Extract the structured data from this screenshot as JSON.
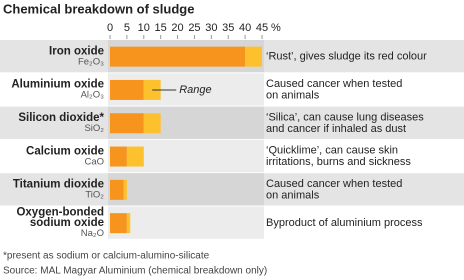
{
  "chart_data": {
    "type": "bar",
    "orientation": "horizontal",
    "stacked": true,
    "title": "Chemical breakdown of sludge",
    "categories": [
      [
        "Iron oxide"
      ],
      [
        "Aluminium oxide"
      ],
      [
        "Silicon dioxide*"
      ],
      [
        "Calcium oxide"
      ],
      [
        "Titanium dioxide"
      ],
      [
        "Oxygen-bonded",
        "sodium oxide"
      ]
    ],
    "formulas": [
      "Fe₂O₃",
      "Al₂O₃",
      "SiO₂",
      "CaO",
      "TiO₂",
      "Na₂O"
    ],
    "series": [
      {
        "name": null,
        "color": "#f7941d",
        "values": [
          40,
          10,
          10,
          5,
          4,
          5
        ]
      },
      {
        "name": "Range",
        "color": "#fdc12e",
        "values": [
          5,
          5,
          5,
          5,
          1,
          1
        ]
      }
    ],
    "descriptions": [
      [
        "‘Rust’, gives sludge its red colour"
      ],
      [
        "Caused cancer when tested",
        "on animals"
      ],
      [
        "‘Silica’, can cause lung diseases",
        "and cancer if inhaled as dust"
      ],
      [
        "‘Quicklime’, can cause skin",
        "irritations, burns and sickness"
      ],
      [
        "Caused cancer when tested",
        "on animals"
      ],
      [
        "Byproduct of aluminium process"
      ]
    ],
    "xlim": [
      0,
      45
    ],
    "xticks": [
      0,
      5,
      10,
      15,
      20,
      25,
      30,
      35,
      40,
      45
    ],
    "x_unit": "%",
    "footnote": "*present as sodium or calcium-alumino-silicate",
    "source": "Source: MAL Magyar Aluminium (chemical breakdown only)"
  }
}
